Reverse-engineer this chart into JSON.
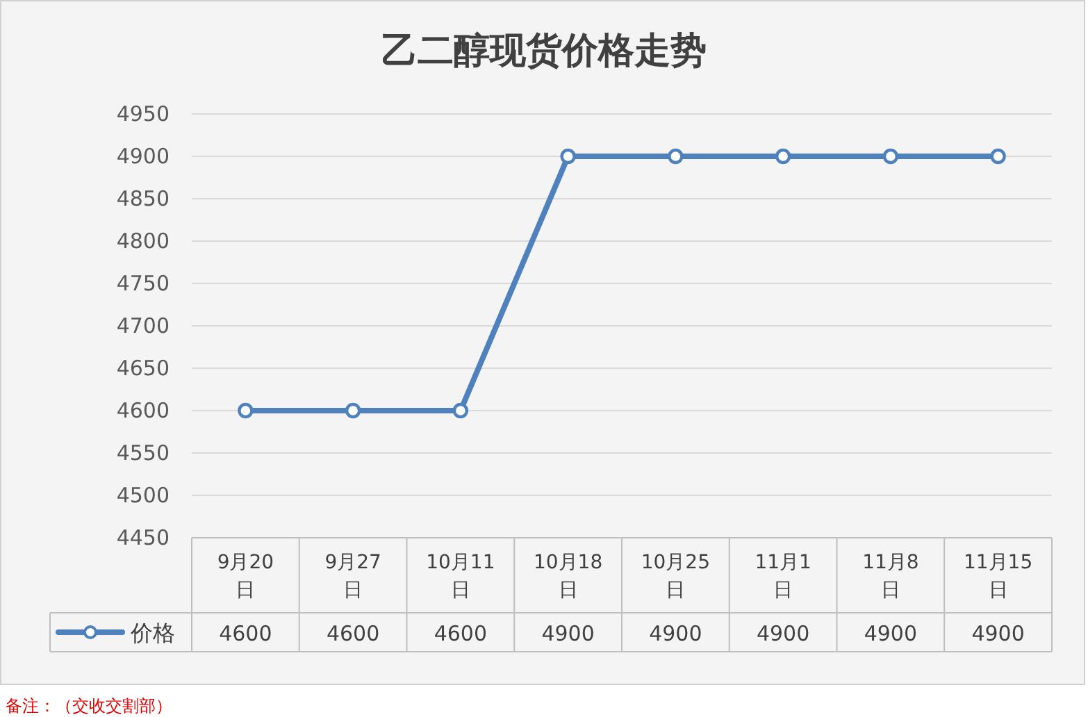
{
  "chart_data": {
    "type": "line",
    "title": "乙二醇现货价格走势",
    "categories": [
      "9月20日",
      "9月27日",
      "10月11日",
      "10月18日",
      "10月25日",
      "11月1日",
      "11月8日",
      "11月15日"
    ],
    "series": [
      {
        "name": "价格",
        "color": "#4f81bd",
        "values": [
          4600,
          4600,
          4600,
          4900,
          4900,
          4900,
          4900,
          4900
        ]
      }
    ],
    "ylim": [
      4450,
      4950
    ],
    "yticks": [
      4450,
      4500,
      4550,
      4600,
      4650,
      4700,
      4750,
      4800,
      4850,
      4900,
      4950
    ],
    "grid": "y",
    "marker": "circle",
    "line_style": "solid",
    "data_labels": true,
    "legend": "bottom left",
    "annotations": [
      "备注：（交收交割部）"
    ]
  }
}
